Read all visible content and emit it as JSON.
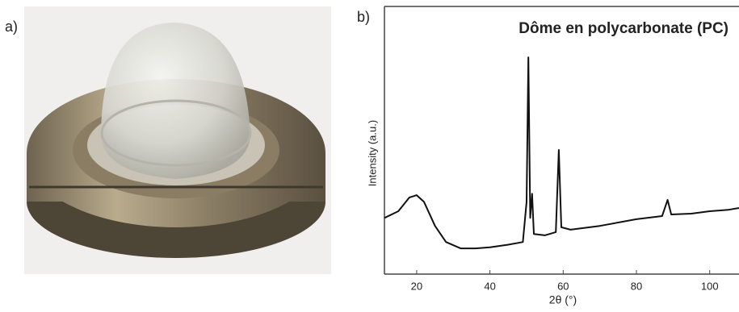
{
  "panels": {
    "a": {
      "label": "a)"
    },
    "b": {
      "label": "b)"
    }
  },
  "chart_data": {
    "type": "line",
    "title": "Dôme en polycarbonate (PC)",
    "xlabel": "2θ (°)",
    "ylabel": "Intensity (a.u.)",
    "x": [
      11.2,
      15,
      18,
      20,
      22,
      25,
      28,
      32,
      36,
      40,
      45,
      49,
      50,
      50.5,
      51,
      51.5,
      52,
      55,
      58,
      58.8,
      59.5,
      62,
      70,
      80,
      87,
      88.5,
      89.5,
      95,
      100,
      105,
      108
    ],
    "values": [
      21,
      23.5,
      28.6,
      29.5,
      27,
      18,
      12,
      9.6,
      9.6,
      10,
      11,
      12,
      27,
      81,
      21,
      30,
      15,
      14.5,
      15.7,
      46.4,
      17.5,
      16.6,
      18,
      20.5,
      21.7,
      27.7,
      22.3,
      22.6,
      23.5,
      24,
      24.7
    ],
    "color": "#111111",
    "xlim": [
      11.2,
      108
    ],
    "ylim": [
      0,
      100
    ],
    "xticks": [
      20,
      40,
      60,
      80,
      100
    ]
  }
}
